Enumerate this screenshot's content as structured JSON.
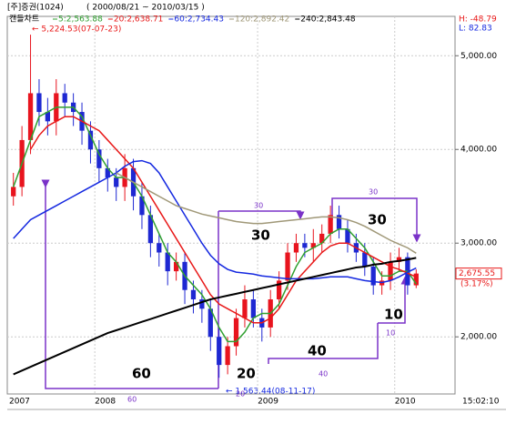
{
  "chart_data": {
    "type": "candlestick",
    "title": "[주]증권(1024)",
    "subtitle": "( 2000/08/21 ~ 2010/03/15 )",
    "legend_title": "캔들차트",
    "high_label": "H: -48.79",
    "low_label": "L: 82.83",
    "time_label": "15:02:10",
    "max_annotation": "← 5,224.53(07-07-23)",
    "min_annotation": "← 1,563.44(08-11-17)",
    "last_price": {
      "value": 2675.55,
      "label": "2,675.55"
    },
    "change_label": "(3.17%)",
    "annotations": [
      "60",
      "20",
      "30",
      "40",
      "30",
      "10"
    ],
    "annotation_counts": [
      "60",
      "20",
      "30",
      "40",
      "30",
      "10"
    ],
    "categories": [
      "2007",
      null,
      null,
      null,
      null,
      null,
      null,
      null,
      null,
      null,
      "2008",
      null,
      null,
      null,
      null,
      null,
      null,
      null,
      null,
      null,
      null,
      null,
      null,
      null,
      null,
      null,
      null,
      null,
      null,
      "2009",
      null,
      null,
      null,
      null,
      null,
      null,
      null,
      null,
      null,
      null,
      null,
      null,
      null,
      null,
      null,
      "2010",
      null,
      null
    ],
    "open": [
      3500,
      3600,
      4100,
      4600,
      4400,
      4300,
      4600,
      4500,
      4400,
      4200,
      4000,
      3800,
      3700,
      3600,
      3800,
      3500,
      3300,
      3000,
      2900,
      2700,
      2800,
      2500,
      2400,
      2300,
      2000,
      1700,
      1900,
      2200,
      2400,
      2200,
      2100,
      2400,
      2600,
      2900,
      3000,
      2950,
      3000,
      3100,
      3300,
      3150,
      3000,
      2900,
      2750,
      2550,
      2600,
      2800,
      2850,
      2550
    ],
    "high": [
      3750,
      4250,
      5224.53,
      4750,
      4550,
      4750,
      4700,
      4600,
      4500,
      4300,
      4100,
      3900,
      3800,
      3950,
      3900,
      3650,
      3400,
      3100,
      3000,
      2900,
      2900,
      2600,
      2500,
      2400,
      2100,
      2000,
      2300,
      2550,
      2500,
      2300,
      2500,
      2700,
      3000,
      3100,
      3100,
      3150,
      3200,
      3400,
      3400,
      3250,
      3100,
      3000,
      2850,
      2700,
      2900,
      2950,
      2900,
      2720
    ],
    "low": [
      3400,
      3500,
      3950,
      4250,
      4150,
      4150,
      4350,
      4250,
      4050,
      3850,
      3650,
      3550,
      3450,
      3450,
      3350,
      3150,
      2850,
      2750,
      2550,
      2600,
      2350,
      2250,
      2150,
      1850,
      1563.44,
      1600,
      1800,
      2100,
      2100,
      1950,
      2000,
      2300,
      2500,
      2800,
      2850,
      2800,
      2900,
      3000,
      3050,
      2900,
      2800,
      2650,
      2450,
      2450,
      2500,
      2700,
      2450,
      2520
    ],
    "close": [
      3600,
      4100,
      4600,
      4400,
      4300,
      4600,
      4500,
      4400,
      4200,
      4000,
      3800,
      3700,
      3600,
      3800,
      3500,
      3300,
      3000,
      2900,
      2700,
      2800,
      2500,
      2400,
      2300,
      2000,
      1700,
      1900,
      2200,
      2400,
      2200,
      2100,
      2400,
      2600,
      2900,
      3000,
      2950,
      3000,
      3100,
      3300,
      3150,
      3000,
      2900,
      2750,
      2550,
      2600,
      2800,
      2850,
      2550,
      2675.55
    ],
    "up_color": "#e8141e",
    "down_color": "#1e28d2",
    "series": [
      {
        "name": "5:2,563.88",
        "color": "#30a030",
        "values": [
          3600,
          3850,
          4100,
          4350,
          4400,
          4450,
          4450,
          4450,
          4350,
          4150,
          3950,
          3800,
          3700,
          3700,
          3650,
          3500,
          3300,
          3100,
          2900,
          2800,
          2650,
          2550,
          2450,
          2300,
          2100,
          1950,
          1950,
          2050,
          2200,
          2250,
          2250,
          2350,
          2550,
          2750,
          2900,
          2950,
          3000,
          3100,
          3150,
          3150,
          3050,
          2950,
          2800,
          2650,
          2650,
          2700,
          2700,
          2563.88
        ]
      },
      {
        "name": "20:2,638.71",
        "color": "#e81818",
        "values": [
          null,
          null,
          4000,
          4150,
          4250,
          4300,
          4350,
          4350,
          4300,
          4250,
          4200,
          4100,
          4000,
          3900,
          3800,
          3650,
          3500,
          3350,
          3200,
          3050,
          2900,
          2750,
          2600,
          2450,
          2350,
          2300,
          2250,
          2200,
          2150,
          2150,
          2200,
          2300,
          2450,
          2600,
          2700,
          2800,
          2900,
          2970,
          3000,
          3000,
          2950,
          2900,
          2850,
          2800,
          2750,
          2720,
          2680,
          2638.71
        ]
      },
      {
        "name": "60:2,734.43",
        "color": "#1428e0",
        "values": [
          3050,
          3150,
          3250,
          3300,
          3350,
          3400,
          3450,
          3500,
          3550,
          3600,
          3650,
          3700,
          3750,
          3820,
          3870,
          3880,
          3850,
          3750,
          3600,
          3450,
          3300,
          3150,
          3000,
          2870,
          2780,
          2720,
          2690,
          2680,
          2670,
          2650,
          2640,
          2630,
          2620,
          2620,
          2620,
          2620,
          2630,
          2640,
          2640,
          2640,
          2620,
          2600,
          2590,
          2580,
          2600,
          2640,
          2690,
          2734.43
        ]
      },
      {
        "name": "120:2,892.42",
        "color": "#a09878",
        "values": [
          null,
          null,
          null,
          null,
          null,
          null,
          null,
          null,
          null,
          null,
          null,
          null,
          3750,
          3700,
          3650,
          3600,
          3550,
          3500,
          3450,
          3400,
          3370,
          3340,
          3310,
          3290,
          3270,
          3250,
          3230,
          3220,
          3210,
          3210,
          3220,
          3230,
          3240,
          3250,
          3260,
          3270,
          3280,
          3280,
          3270,
          3250,
          3220,
          3180,
          3130,
          3080,
          3030,
          2990,
          2950,
          2892.42
        ]
      },
      {
        "name": "240:2,843.48",
        "color": "#000000",
        "values": [
          1600,
          1640,
          1680,
          1720,
          1760,
          1800,
          1840,
          1880,
          1920,
          1960,
          2000,
          2040,
          2070,
          2100,
          2130,
          2160,
          2190,
          2220,
          2250,
          2280,
          2310,
          2340,
          2370,
          2400,
          2420,
          2440,
          2460,
          2480,
          2500,
          2520,
          2540,
          2560,
          2580,
          2600,
          2620,
          2640,
          2660,
          2680,
          2700,
          2720,
          2740,
          2750,
          2770,
          2780,
          2800,
          2810,
          2825,
          2843.48
        ]
      }
    ],
    "ylim": [
      1400,
      5420
    ],
    "yticks": [
      {
        "value": 2000,
        "label": "2,000.00"
      },
      {
        "value": 3000,
        "label": "3,000.00"
      },
      {
        "value": 4000,
        "label": "4,000.00"
      },
      {
        "value": 5000,
        "label": "5,000.00"
      }
    ],
    "grid": true
  }
}
